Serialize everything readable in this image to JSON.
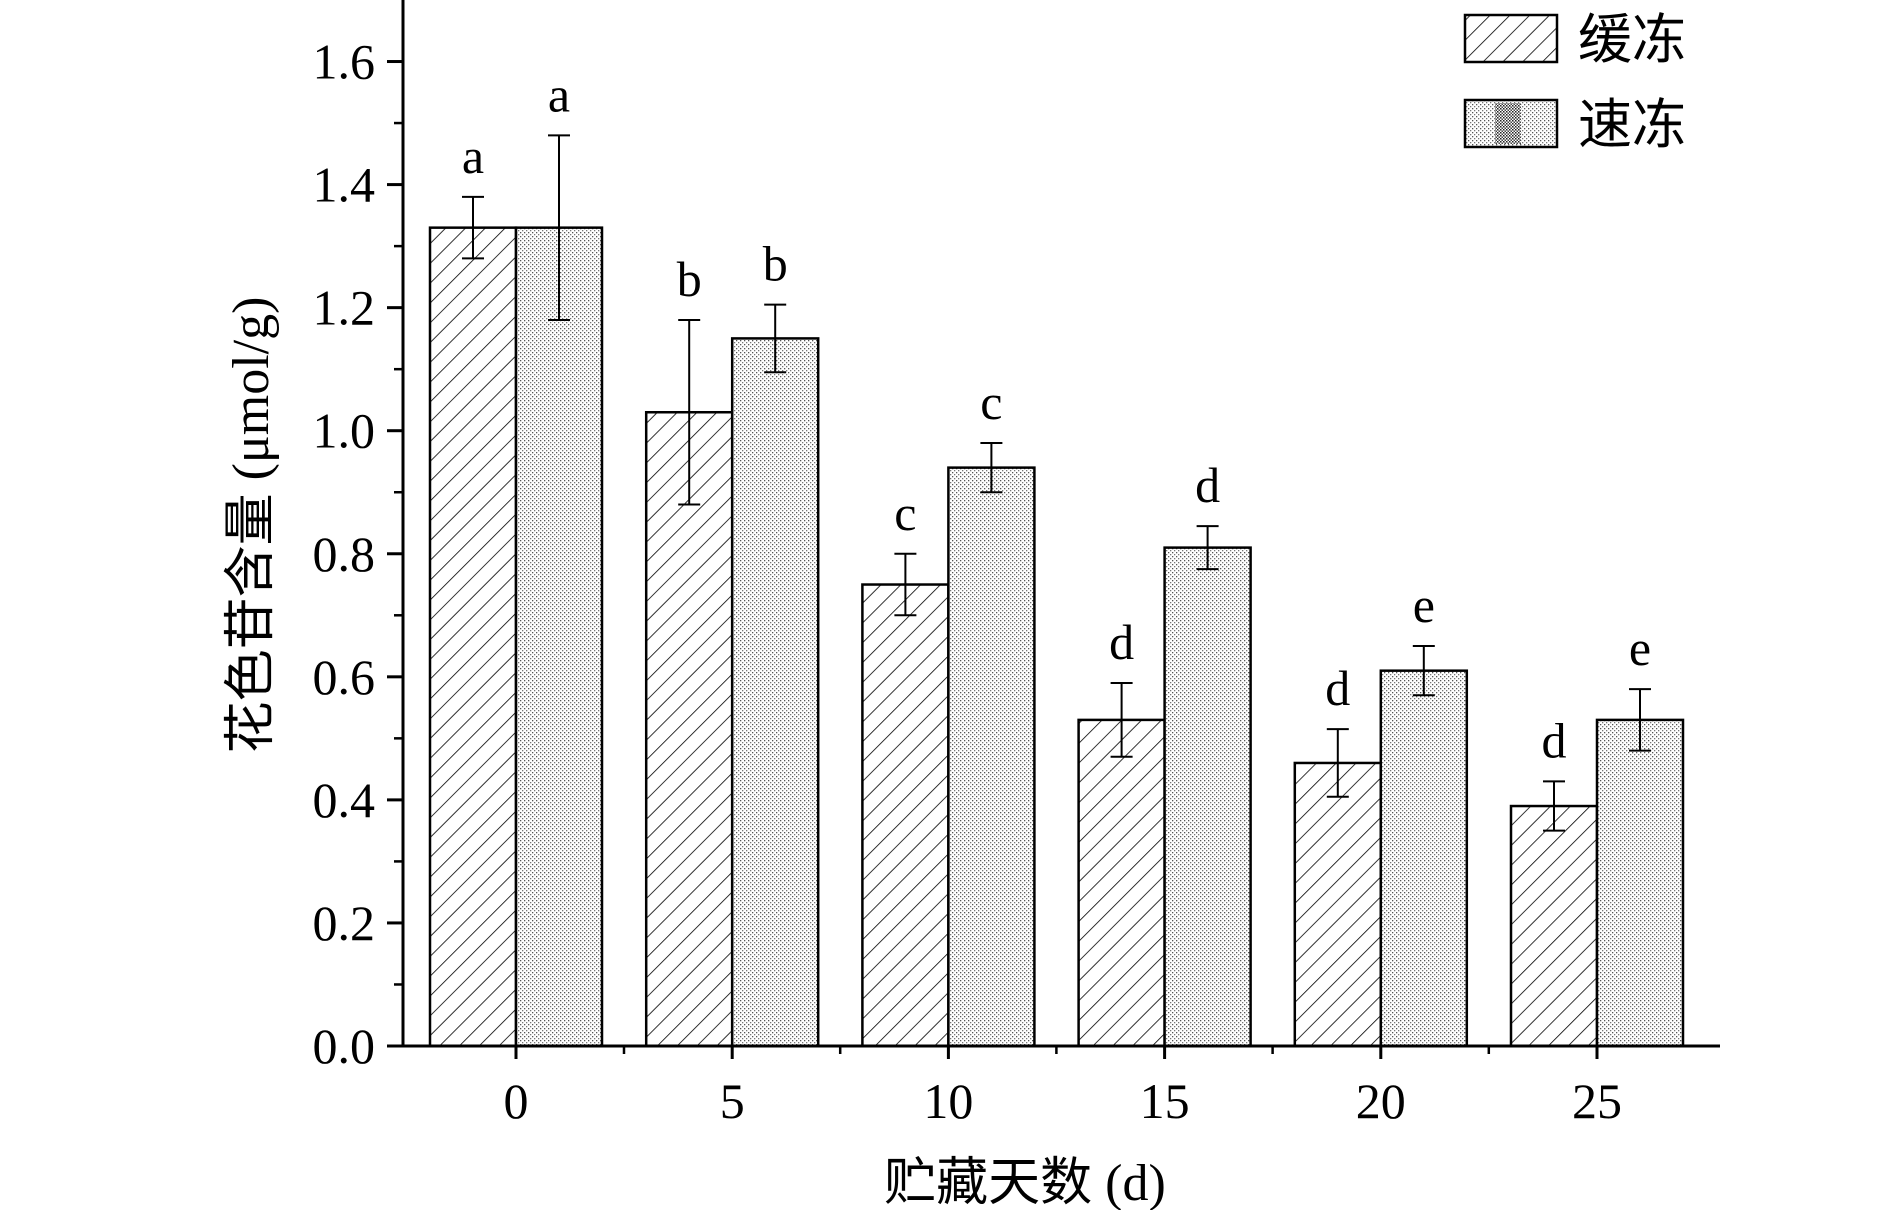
{
  "chart_data": {
    "type": "bar",
    "xlabel": "贮藏天数 (d)",
    "ylabel": "花色苷含量 (μmol/g)",
    "ylim": [
      0,
      1.7
    ],
    "yticks": [
      "0.0",
      "0.2",
      "0.4",
      "0.6",
      "0.8",
      "1.0",
      "1.2",
      "1.4",
      "1.6"
    ],
    "categories": [
      "0",
      "5",
      "10",
      "15",
      "20",
      "25"
    ],
    "legend_position": "top-right",
    "series": [
      {
        "name": "缓冻",
        "pattern": "diagonal-hatch",
        "values": [
          1.33,
          1.03,
          0.75,
          0.53,
          0.46,
          0.39
        ],
        "errors": [
          0.05,
          0.15,
          0.05,
          0.06,
          0.055,
          0.04
        ],
        "labels": [
          "a",
          "b",
          "c",
          "d",
          "d",
          "d"
        ]
      },
      {
        "name": "速冻",
        "pattern": "dotted",
        "values": [
          1.33,
          1.15,
          0.94,
          0.81,
          0.61,
          0.53
        ],
        "errors": [
          0.15,
          0.055,
          0.04,
          0.035,
          0.04,
          0.05
        ],
        "labels": [
          "a",
          "b",
          "c",
          "d",
          "e",
          "e"
        ]
      }
    ]
  }
}
